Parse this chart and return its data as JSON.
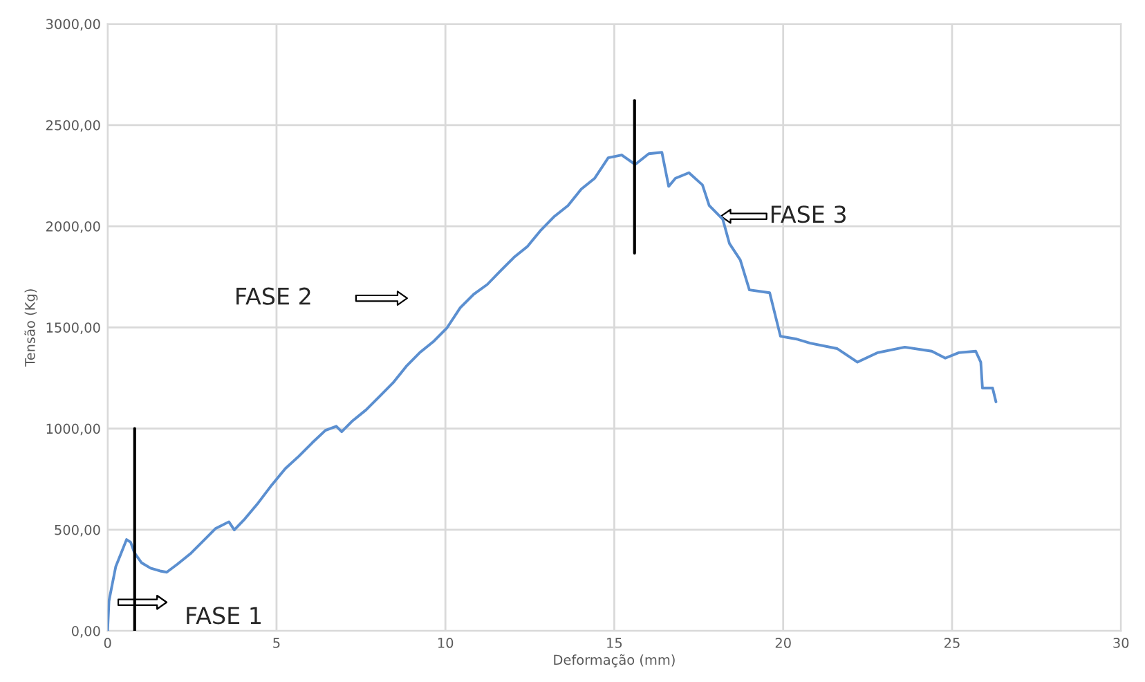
{
  "chart_data": {
    "type": "line",
    "xlabel": "Deformação (mm)",
    "ylabel": "Tensão (Kg)",
    "xlim": [
      0,
      30
    ],
    "xticks": [
      0,
      5,
      10,
      15,
      20,
      25,
      30
    ],
    "ylim": [
      0,
      3000
    ],
    "yticks": [
      {
        "value": 0,
        "label": "0,00"
      },
      {
        "value": 500,
        "label": "500,00"
      },
      {
        "value": 1000,
        "label": "1000,00"
      },
      {
        "value": 1500,
        "label": "1500,00"
      },
      {
        "value": 2000,
        "label": "2000,00"
      },
      {
        "value": 2500,
        "label": "2500,00"
      },
      {
        "value": 3000,
        "label": "3000,00"
      }
    ],
    "grid": true,
    "series": [
      {
        "color": "#5b8fd0",
        "x": [
          0,
          0.04,
          0.12,
          0.24,
          0.4,
          0.56,
          0.68,
          0.8,
          1.0,
          1.27,
          1.55,
          1.75,
          2.07,
          2.47,
          2.87,
          3.19,
          3.59,
          3.75,
          4.06,
          4.46,
          4.86,
          5.26,
          5.66,
          6.06,
          6.45,
          6.77,
          6.93,
          7.25,
          7.65,
          8.05,
          8.45,
          8.84,
          9.24,
          9.64,
          10.04,
          10.44,
          10.84,
          11.24,
          11.63,
          12.03,
          12.43,
          12.83,
          13.23,
          13.63,
          14.02,
          14.42,
          14.82,
          15.22,
          15.62,
          16.02,
          16.41,
          16.61,
          16.81,
          17.21,
          17.61,
          17.81,
          18.21,
          18.41,
          18.73,
          19.0,
          19.6,
          19.92,
          20.4,
          20.8,
          21.6,
          22.2,
          22.8,
          23.6,
          24.4,
          24.8,
          25.2,
          25.7,
          25.85,
          25.9,
          26.2,
          26.3
        ],
        "values": [
          0,
          148,
          216,
          317,
          384,
          451,
          438,
          384,
          337,
          310,
          296,
          290,
          330,
          384,
          451,
          505,
          539,
          499,
          553,
          633,
          721,
          802,
          863,
          930,
          991,
          1011,
          984,
          1038,
          1092,
          1159,
          1226,
          1307,
          1375,
          1429,
          1496,
          1597,
          1664,
          1712,
          1779,
          1846,
          1900,
          1981,
          2049,
          2102,
          2183,
          2237,
          2338,
          2352,
          2305,
          2358,
          2365,
          2197,
          2237,
          2264,
          2204,
          2102,
          2035,
          1914,
          1833,
          1685,
          1671,
          1456,
          1442,
          1422,
          1395,
          1328,
          1375,
          1402,
          1382,
          1348,
          1375,
          1382,
          1328,
          1200,
          1200,
          1132
        ]
      },
      {
        "color": "#000000",
        "x": [
          0.8,
          0.8
        ],
        "values": [
          0,
          1000
        ]
      },
      {
        "color": "#000000",
        "x": [
          15.6,
          15.6
        ],
        "values": [
          1867,
          2621
        ]
      }
    ],
    "annotations": [
      "FASE 1",
      "FASE 2",
      "FASE 3"
    ]
  }
}
